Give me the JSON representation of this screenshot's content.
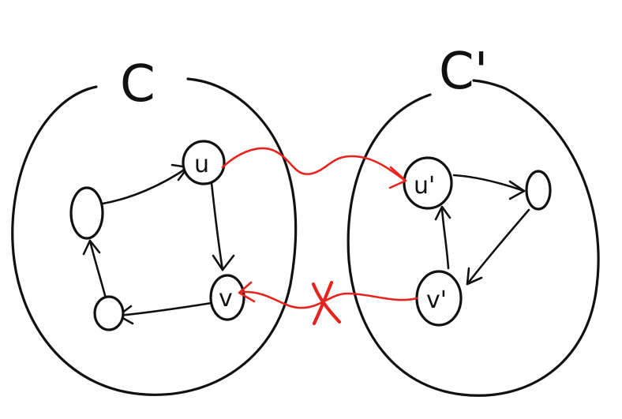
{
  "diagram": {
    "left_component": {
      "label": "C",
      "nodes": [
        "u",
        "v",
        "",
        "",
        ""
      ]
    },
    "right_component": {
      "label": "C'",
      "nodes": [
        "u'",
        "v'",
        ""
      ]
    },
    "cross_edges": [
      {
        "from": "u",
        "to": "u'",
        "status": "exists"
      },
      {
        "from": "v'",
        "to": "v",
        "status": "crossed-out",
        "mark": "X"
      }
    ],
    "colors": {
      "ink": "#111111",
      "highlight": "#e8231d",
      "background": "#ffffff"
    }
  }
}
